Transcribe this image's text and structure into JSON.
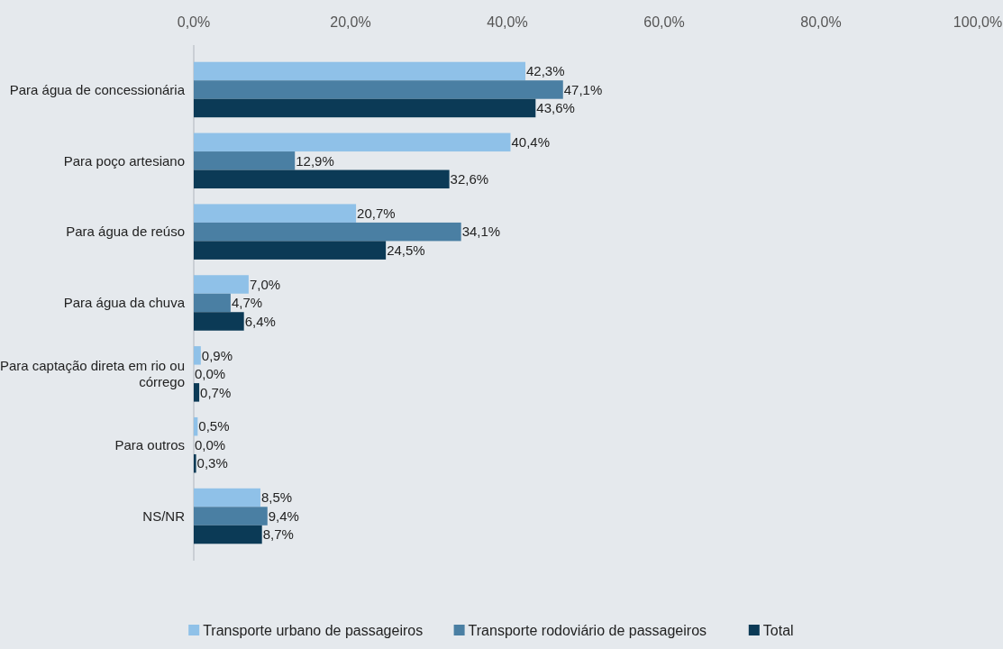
{
  "chart_data": {
    "type": "bar",
    "orientation": "horizontal",
    "categories": [
      "Para água de concessionária",
      "Para poço artesiano",
      "Para água de reúso",
      "Para água da chuva",
      "Para captação direta em rio ou córrego",
      "Para outros",
      "NS/NR"
    ],
    "series": [
      {
        "name": "Transporte urbano de passageiros",
        "color": "#8fc1e8",
        "values": [
          42.3,
          40.4,
          20.7,
          7.0,
          0.9,
          0.5,
          8.5
        ],
        "value_labels": [
          "42,3%",
          "40,4%",
          "20,7%",
          "7,0%",
          "0,9%",
          "0,5%",
          "8,5%"
        ]
      },
      {
        "name": "Transporte rodoviário de passageiros",
        "color": "#4a7fa3",
        "values": [
          47.1,
          12.9,
          34.1,
          4.7,
          0.0,
          0.0,
          9.4
        ],
        "value_labels": [
          "47,1%",
          "12,9%",
          "34,1%",
          "4,7%",
          "0,0%",
          "0,0%",
          "9,4%"
        ]
      },
      {
        "name": "Total",
        "color": "#0b3a56",
        "values": [
          43.6,
          32.6,
          24.5,
          6.4,
          0.7,
          0.3,
          8.7
        ],
        "value_labels": [
          "43,6%",
          "32,6%",
          "24,5%",
          "6,4%",
          "0,7%",
          "0,3%",
          "8,7%"
        ]
      }
    ],
    "xlim": [
      0,
      100
    ],
    "xticks": [
      {
        "value": 0,
        "label": "0,0%"
      },
      {
        "value": 20,
        "label": "20,0%"
      },
      {
        "value": 40,
        "label": "40,0%"
      },
      {
        "value": 60,
        "label": "60,0%"
      },
      {
        "value": 80,
        "label": "80,0%"
      },
      {
        "value": 100,
        "label": "100,0%"
      }
    ],
    "grid": false,
    "legend": "bottom"
  }
}
